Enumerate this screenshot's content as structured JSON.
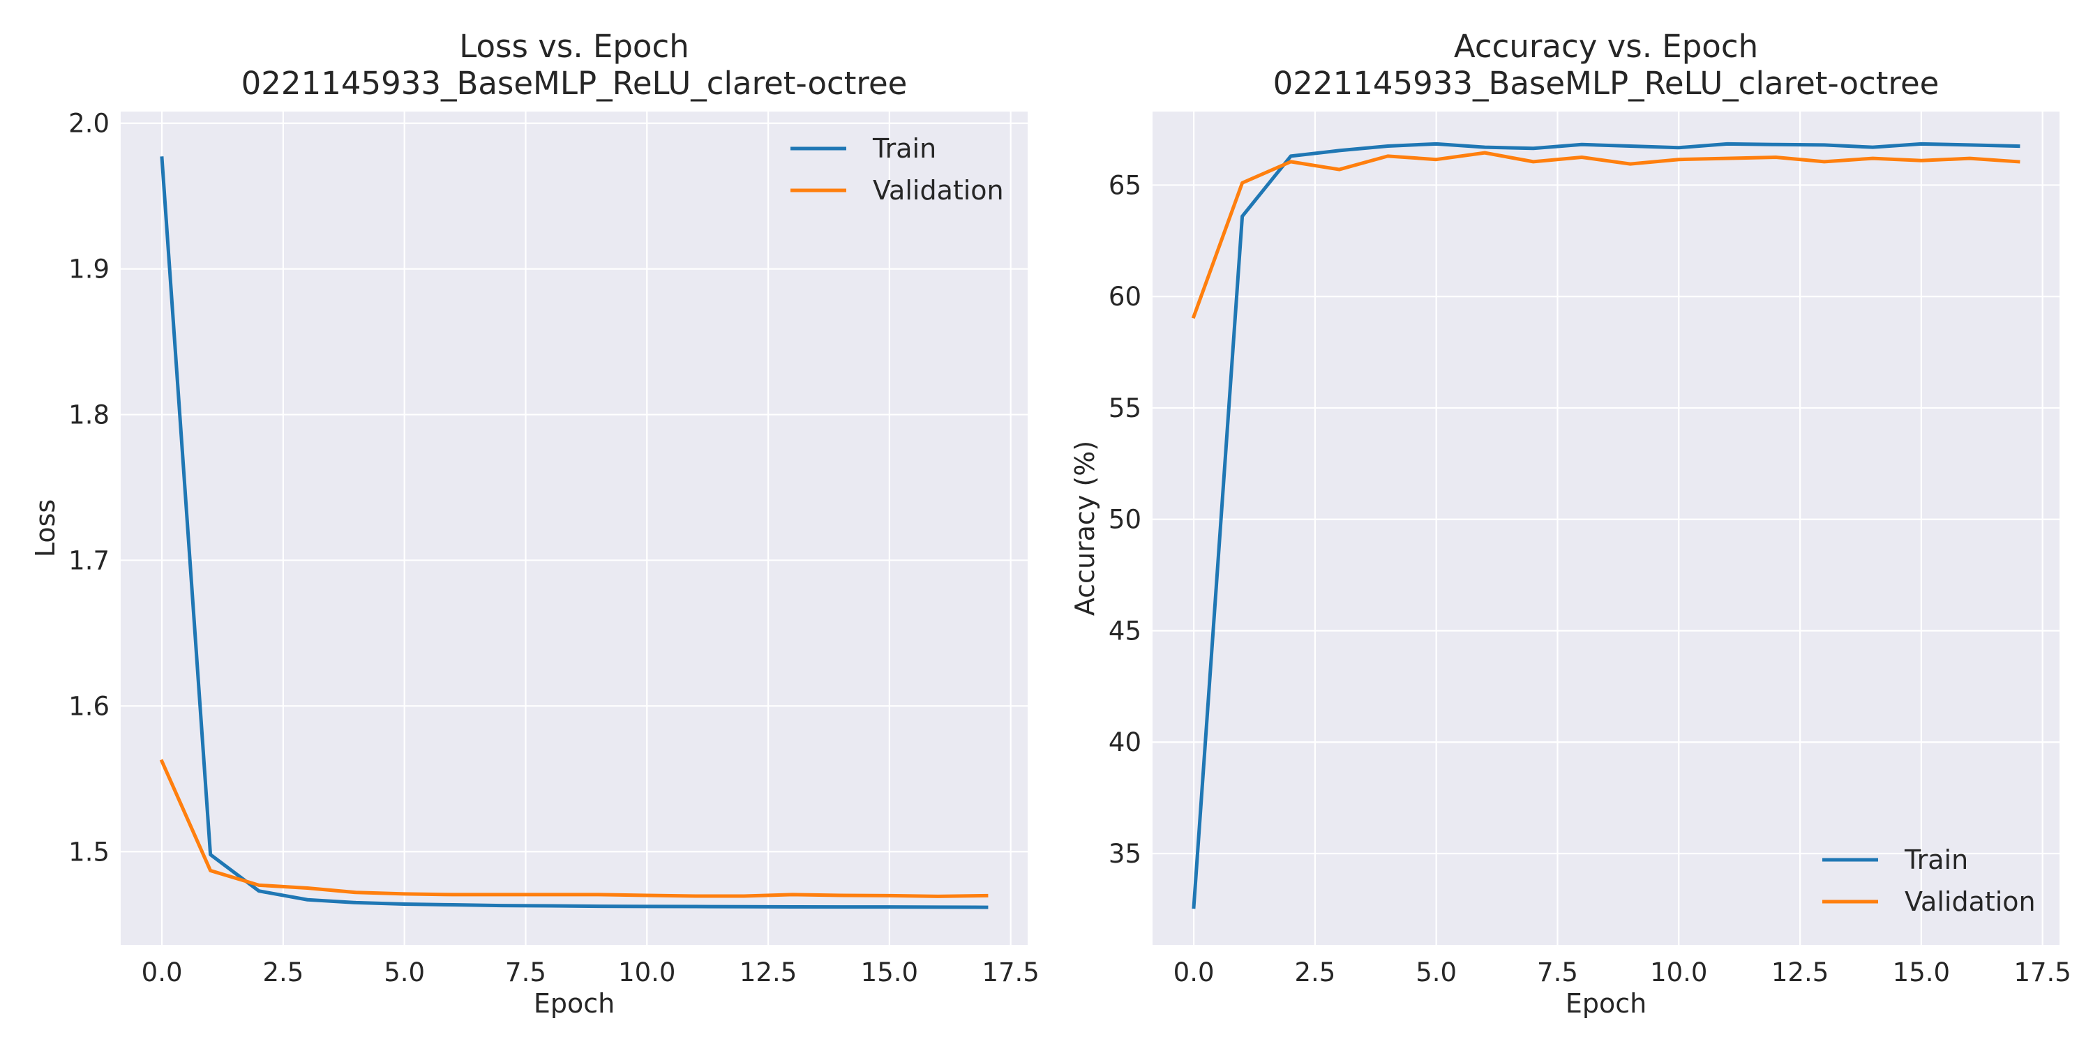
{
  "chart_data": [
    {
      "type": "line",
      "title": "Loss vs. Epoch",
      "subtitle": "0221145933_BaseMLP_ReLU_claret-octree",
      "xlabel": "Epoch",
      "ylabel": "Loss",
      "xlim": [
        -0.85,
        17.85
      ],
      "ylim": [
        1.436,
        2.008
      ],
      "x_ticks": [
        0.0,
        2.5,
        5.0,
        7.5,
        10.0,
        12.5,
        15.0,
        17.5
      ],
      "x_tick_labels": [
        "0.0",
        "2.5",
        "5.0",
        "7.5",
        "10.0",
        "12.5",
        "15.0",
        "17.5"
      ],
      "y_ticks": [
        1.5,
        1.6,
        1.7,
        1.8,
        1.9,
        2.0
      ],
      "y_tick_labels": [
        "1.5",
        "1.6",
        "1.7",
        "1.8",
        "1.9",
        "2.0"
      ],
      "grid": true,
      "legend_position": "top-right",
      "x": [
        0,
        1,
        2,
        3,
        4,
        5,
        6,
        7,
        8,
        9,
        10,
        11,
        12,
        13,
        14,
        15,
        16,
        17
      ],
      "series": [
        {
          "name": "Train",
          "color": "#1f77b4",
          "values": [
            1.976,
            1.498,
            1.473,
            1.467,
            1.465,
            1.464,
            1.4635,
            1.463,
            1.4628,
            1.4625,
            1.4624,
            1.4623,
            1.4622,
            1.4621,
            1.462,
            1.462,
            1.4619,
            1.4618
          ]
        },
        {
          "name": "Validation",
          "color": "#ff7f0e",
          "values": [
            1.562,
            1.487,
            1.477,
            1.475,
            1.472,
            1.471,
            1.4705,
            1.4705,
            1.4705,
            1.4705,
            1.47,
            1.4695,
            1.4695,
            1.4705,
            1.47,
            1.4698,
            1.4693,
            1.4698
          ]
        }
      ]
    },
    {
      "type": "line",
      "title": "Accuracy vs. Epoch",
      "subtitle": "0221145933_BaseMLP_ReLU_claret-octree",
      "xlabel": "Epoch",
      "ylabel": "Accuracy (%)",
      "xlim": [
        -0.85,
        17.85
      ],
      "ylim": [
        30.9,
        68.3
      ],
      "x_ticks": [
        0.0,
        2.5,
        5.0,
        7.5,
        10.0,
        12.5,
        15.0,
        17.5
      ],
      "x_tick_labels": [
        "0.0",
        "2.5",
        "5.0",
        "7.5",
        "10.0",
        "12.5",
        "15.0",
        "17.5"
      ],
      "y_ticks": [
        35,
        40,
        45,
        50,
        55,
        60,
        65
      ],
      "y_tick_labels": [
        "35",
        "40",
        "45",
        "50",
        "55",
        "60",
        "65"
      ],
      "grid": true,
      "legend_position": "bottom-right",
      "x": [
        0,
        1,
        2,
        3,
        4,
        5,
        6,
        7,
        8,
        9,
        10,
        11,
        12,
        13,
        14,
        15,
        16,
        17
      ],
      "series": [
        {
          "name": "Train",
          "color": "#1f77b4",
          "values": [
            32.6,
            63.6,
            66.3,
            66.55,
            66.75,
            66.85,
            66.7,
            66.65,
            66.82,
            66.75,
            66.68,
            66.85,
            66.82,
            66.8,
            66.7,
            66.85,
            66.8,
            66.75
          ]
        },
        {
          "name": "Validation",
          "color": "#ff7f0e",
          "values": [
            59.1,
            65.1,
            66.05,
            65.7,
            66.3,
            66.15,
            66.45,
            66.05,
            66.25,
            65.95,
            66.15,
            66.2,
            66.25,
            66.05,
            66.2,
            66.1,
            66.2,
            66.05
          ]
        }
      ]
    }
  ]
}
